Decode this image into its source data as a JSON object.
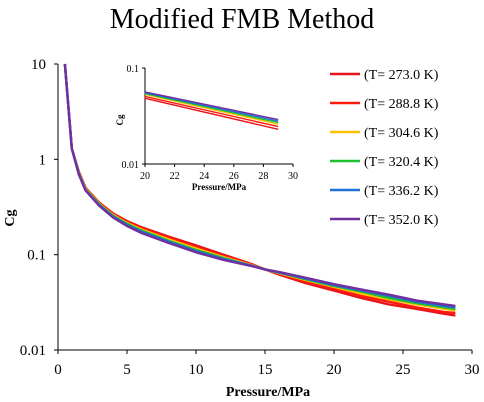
{
  "chart_data": {
    "type": "line",
    "title": "Modified FMB Method",
    "xlabel": "Pressure/MPa",
    "ylabel": "Cg",
    "x_scale": "linear",
    "y_scale": "log",
    "xlim": [
      0,
      30
    ],
    "ylim": [
      0.01,
      10
    ],
    "x_ticks": [
      "0",
      "5",
      "10",
      "15",
      "20",
      "25",
      "30"
    ],
    "y_ticks": [
      "0.01",
      "0.1",
      "1",
      "10"
    ],
    "legend_position": "right",
    "x": [
      0.5,
      1,
      1.5,
      2,
      3,
      4,
      5,
      6,
      8,
      10,
      12,
      14,
      15,
      16,
      18,
      20,
      22,
      24,
      26,
      28,
      28.8
    ],
    "series": [
      {
        "name": "(T= 273.0 K)",
        "color": "#e8141b",
        "values": [
          10,
          1.3,
          0.75,
          0.5,
          0.35,
          0.27,
          0.225,
          0.195,
          0.155,
          0.125,
          0.1,
          0.08,
          0.07,
          0.062,
          0.05,
          0.042,
          0.035,
          0.03,
          0.027,
          0.024,
          0.023
        ]
      },
      {
        "name": "(T= 288.8 K)",
        "color": "#ff1a0d",
        "values": [
          10,
          1.3,
          0.74,
          0.5,
          0.345,
          0.265,
          0.22,
          0.19,
          0.15,
          0.12,
          0.097,
          0.079,
          0.07,
          0.063,
          0.052,
          0.044,
          0.037,
          0.032,
          0.028,
          0.025,
          0.0245
        ]
      },
      {
        "name": "(T= 304.6 K)",
        "color": "#ffc000",
        "values": [
          10,
          1.3,
          0.73,
          0.49,
          0.34,
          0.26,
          0.215,
          0.185,
          0.145,
          0.116,
          0.094,
          0.078,
          0.07,
          0.064,
          0.054,
          0.046,
          0.039,
          0.034,
          0.03,
          0.027,
          0.026
        ]
      },
      {
        "name": "(T= 320.4 K)",
        "color": "#1fbf2e",
        "values": [
          10,
          1.3,
          0.72,
          0.48,
          0.335,
          0.255,
          0.21,
          0.18,
          0.14,
          0.112,
          0.092,
          0.077,
          0.07,
          0.065,
          0.055,
          0.047,
          0.041,
          0.035,
          0.031,
          0.028,
          0.027
        ]
      },
      {
        "name": "(T= 336.2 K)",
        "color": "#1f6fd6",
        "values": [
          10,
          1.3,
          0.71,
          0.475,
          0.33,
          0.25,
          0.205,
          0.175,
          0.137,
          0.109,
          0.09,
          0.077,
          0.07,
          0.065,
          0.056,
          0.048,
          0.042,
          0.037,
          0.032,
          0.029,
          0.028
        ]
      },
      {
        "name": "(T= 352.0 K)",
        "color": "#7030a0",
        "values": [
          10,
          1.3,
          0.7,
          0.47,
          0.325,
          0.245,
          0.2,
          0.17,
          0.133,
          0.106,
          0.088,
          0.076,
          0.07,
          0.066,
          0.057,
          0.049,
          0.043,
          0.038,
          0.033,
          0.03,
          0.029
        ]
      }
    ],
    "inset": {
      "xlabel": "Pressure/MPa",
      "ylabel": "Cg",
      "xlim": [
        20,
        30
      ],
      "ylim": [
        0.01,
        0.1
      ],
      "y_scale": "log",
      "x_ticks": [
        "20",
        "22",
        "24",
        "26",
        "28",
        "30"
      ],
      "y_ticks": [
        "0.01",
        "0.1"
      ],
      "x": [
        20,
        29
      ]
    }
  }
}
